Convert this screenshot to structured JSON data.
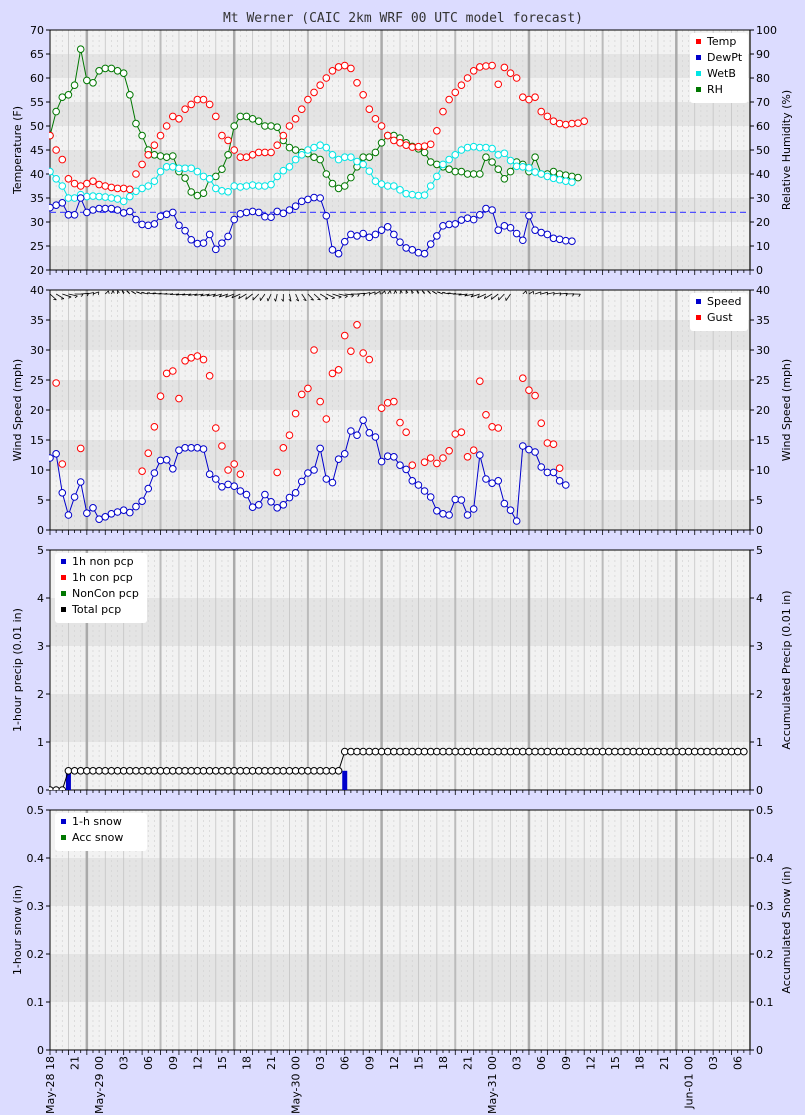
{
  "title": "Mt Werner (CAIC 2km WRF 00 UTC model forecast)",
  "colors": {
    "temp": "#ff0000",
    "dewpt": "#0000cc",
    "wetb": "#00e5e5",
    "rh": "#007700",
    "speed": "#0000cc",
    "gust": "#ff0000",
    "total": "#000000",
    "plot_bg": "#f2f2f2",
    "band": "#e4e4e4",
    "frame_bg": "#dcdcff"
  },
  "x_axis": {
    "hours_total": 114,
    "labels": [
      "May-28 18",
      "21",
      "May-29 00",
      "03",
      "06",
      "09",
      "12",
      "15",
      "18",
      "21",
      "May-30 00",
      "03",
      "06",
      "09",
      "12",
      "15",
      "18",
      "21",
      "May-31 00",
      "03",
      "06",
      "09",
      "12",
      "15",
      "18",
      "21",
      "Jun-01 00",
      "03",
      "06"
    ]
  },
  "chart_data": [
    {
      "type": "line",
      "title": "Mt Werner (CAIC 2km WRF 00 UTC model forecast)",
      "ylabel": "Temperature (F)",
      "y2label": "Relative Humidity (%)",
      "ylim": [
        20,
        70
      ],
      "y2lim": [
        0,
        100
      ],
      "yticks": [
        "20",
        "25",
        "30",
        "35",
        "40",
        "45",
        "50",
        "55",
        "60",
        "65",
        "70"
      ],
      "y2ticks": [
        "0",
        "10",
        "20",
        "30",
        "40",
        "50",
        "60",
        "70",
        "80",
        "90",
        "100"
      ],
      "reference_line": 32,
      "legend": "top-right",
      "series": [
        {
          "name": "Temp",
          "values": [
            48,
            45,
            43,
            39,
            38,
            37.5,
            38,
            38.5,
            37.8,
            37.5,
            37.2,
            37,
            37,
            36.8,
            40,
            42,
            44,
            46,
            48,
            50,
            52,
            51.5,
            53.5,
            54.5,
            55.5,
            55.5,
            54.5,
            52,
            48,
            47,
            45,
            43.5,
            43.5,
            44,
            44.5,
            44.5,
            44.5,
            46,
            48,
            50,
            51.5,
            53.5,
            55.5,
            57,
            58.5,
            60,
            61.5,
            62.3,
            62.6,
            62,
            59,
            56.5,
            53.5,
            51.5,
            50,
            48,
            47,
            46.5,
            46,
            45.6,
            45.7,
            45.8,
            46.2,
            49,
            53,
            55.5,
            57,
            58.5,
            60,
            61.5,
            62.3,
            62.5,
            62.6,
            58.7,
            62.2,
            61,
            60,
            56,
            55.5,
            56,
            53,
            52,
            51,
            50.5,
            50.3,
            50.5,
            50.6,
            51
          ]
        },
        {
          "name": "DewPt",
          "values": [
            33,
            33.5,
            34,
            31.5,
            31.5,
            35,
            32,
            32.5,
            32.8,
            32.8,
            32.8,
            32.5,
            31.9,
            32.2,
            30.5,
            29.5,
            29.3,
            29.6,
            31.2,
            31.6,
            32,
            29.3,
            28.2,
            26.3,
            25.5,
            25.6,
            27.4,
            24.3,
            25.6,
            27,
            30.5,
            31.7,
            32,
            32.2,
            32,
            31.1,
            31,
            32.2,
            31.8,
            32.5,
            33.3,
            34.3,
            34.7,
            35.1,
            35,
            31.3,
            24.2,
            23.4,
            25.9,
            27.4,
            27.1,
            27.6,
            26.8,
            27.4,
            28.3,
            29,
            27.4,
            25.8,
            24.6,
            24.2,
            23.6,
            23.4,
            25.4,
            27.1,
            29.2,
            29.5,
            29.6,
            30.4,
            30.8,
            30.5,
            31.5,
            32.8,
            32.5,
            28.3,
            29.2,
            28.8,
            27.6,
            26.2,
            31.3,
            28.3,
            27.8,
            27.4,
            26.6,
            26.4,
            26.1,
            26
          ]
        },
        {
          "name": "WetB",
          "values": [
            40.5,
            39,
            37.5,
            35,
            35,
            35.7,
            35.3,
            35.4,
            35.3,
            35.2,
            35,
            34.8,
            34.3,
            35.3,
            36.4,
            37,
            37.5,
            38.5,
            40.5,
            41.5,
            41.5,
            41.2,
            41.2,
            41.2,
            40.5,
            39.5,
            39,
            37,
            36.5,
            36.3,
            37.5,
            37.3,
            37.5,
            37.7,
            37.5,
            37.5,
            37.8,
            39.5,
            40.7,
            41.5,
            43,
            44,
            45,
            45.5,
            46,
            45.5,
            44,
            43,
            43.5,
            43.5,
            42.6,
            42,
            40.6,
            38.5,
            37.9,
            37.5,
            37.5,
            36.7,
            35.9,
            35.7,
            35.5,
            35.6,
            37.5,
            39.5,
            42,
            43,
            44,
            45,
            45.5,
            45.7,
            45.5,
            45.5,
            45.3,
            44,
            44.3,
            42.8,
            41.6,
            41.5,
            41.3,
            40.4,
            40,
            39.5,
            39.1,
            38.8,
            38.5,
            38.3
          ]
        },
        {
          "name": "RH",
          "y_axis": "right",
          "values": [
            56,
            66,
            72,
            73,
            77,
            92,
            79,
            78,
            83,
            84,
            84,
            83,
            82,
            73,
            61,
            56,
            50,
            48,
            47.5,
            47,
            47.5,
            41,
            38.3,
            32.5,
            31,
            32,
            38,
            39,
            42,
            48,
            60,
            64,
            64,
            63,
            62,
            60,
            60,
            59.5,
            54,
            51,
            50,
            49,
            48.5,
            47,
            46,
            40,
            36,
            34,
            35,
            38.5,
            43,
            47,
            47,
            49,
            53,
            56,
            56,
            55,
            53,
            51.5,
            50.5,
            49,
            45,
            44,
            43,
            42,
            41,
            41,
            40,
            40,
            40,
            47,
            45,
            42,
            38,
            41,
            45,
            44,
            41,
            47,
            40,
            40,
            41,
            40,
            39.5,
            39,
            38.5
          ]
        }
      ]
    },
    {
      "type": "line",
      "ylabel": "Wind Speed (mph)",
      "y2label": "Wind Speed (mph)",
      "ylim": [
        0,
        40
      ],
      "yticks": [
        "0",
        "5",
        "10",
        "15",
        "20",
        "25",
        "30",
        "35",
        "40"
      ],
      "legend": "top-right",
      "series": [
        {
          "name": "Speed",
          "values": [
            12,
            12.7,
            6.2,
            2.5,
            5.5,
            8,
            2.8,
            3.7,
            1.8,
            2.2,
            2.7,
            3,
            3.3,
            2.9,
            3.9,
            4.8,
            6.9,
            9.5,
            11.6,
            11.7,
            10.2,
            13.3,
            13.7,
            13.7,
            13.7,
            13.5,
            9.3,
            8.5,
            7.2,
            7.6,
            7.3,
            6.5,
            5.9,
            3.8,
            4.2,
            5.9,
            4.7,
            3.7,
            4.2,
            5.4,
            6.2,
            8.1,
            9.5,
            10,
            13.6,
            8.5,
            7.9,
            11.8,
            12.7,
            16.5,
            15.8,
            18.3,
            16.2,
            15.5,
            11.4,
            12.3,
            12.2,
            10.8,
            10.1,
            8.2,
            7.5,
            6.5,
            5.5,
            3.2,
            2.7,
            2.5,
            5.1,
            5,
            2.5,
            3.5,
            12.5,
            8.5,
            7.8,
            8.2,
            4.4,
            3.3,
            1.5,
            14,
            13.4,
            13,
            10.5,
            9.6,
            9.6,
            8.2,
            7.5
          ]
        },
        {
          "name": "Gust",
          "values": [
            null,
            24.5,
            11,
            null,
            null,
            13.6,
            null,
            null,
            null,
            null,
            null,
            null,
            null,
            null,
            null,
            9.8,
            12.8,
            17.2,
            22.3,
            26.1,
            26.5,
            21.9,
            28.2,
            28.7,
            29,
            28.4,
            25.7,
            17,
            14,
            10,
            11,
            9.3,
            null,
            null,
            null,
            null,
            null,
            9.6,
            13.7,
            15.8,
            19.4,
            22.6,
            23.6,
            30,
            21.4,
            18.5,
            26.1,
            26.7,
            32.4,
            29.8,
            34.2,
            29.5,
            28.4,
            null,
            20.3,
            21.2,
            21.4,
            17.9,
            16.3,
            10.8,
            null,
            11.3,
            12,
            11.1,
            12,
            13.2,
            16,
            16.3,
            12.2,
            13.3,
            24.8,
            19.2,
            17.2,
            17,
            null,
            null,
            null,
            25.3,
            23.3,
            22.4,
            17.8,
            14.5,
            14.3,
            10.3
          ]
        }
      ],
      "wind_direction_deg": [
        315,
        300,
        280,
        270,
        250,
        240,
        230,
        220,
        210,
        200,
        190,
        180,
        170,
        160,
        150,
        140,
        130,
        125,
        120,
        115,
        110,
        105,
        100,
        100,
        95,
        95,
        90,
        90,
        85,
        80,
        75,
        70,
        60,
        50,
        40,
        30,
        20,
        10,
        0,
        350,
        340,
        330,
        320,
        315,
        300,
        290,
        280,
        270,
        260,
        250,
        240,
        230,
        220,
        210,
        200,
        195,
        190,
        185,
        180,
        175,
        170,
        165,
        160,
        150,
        140,
        130,
        120,
        110,
        100,
        90,
        80,
        70,
        60,
        50,
        40,
        30,
        20,
        200,
        210,
        220,
        225,
        230,
        235,
        240,
        245,
        250
      ]
    },
    {
      "type": "bar",
      "ylabel": "1-hour precip (0.01 in)",
      "y2label": "Accumulated Precip (0.01 in)",
      "ylim": [
        0,
        5
      ],
      "yticks": [
        "0",
        "1",
        "2",
        "3",
        "4",
        "5"
      ],
      "legend": "top-left",
      "series": [
        {
          "name": "1h non pcp",
          "bars": [
            {
              "hour": 3,
              "value": 0.4
            },
            {
              "hour": 48,
              "value": 0.4
            }
          ]
        },
        {
          "name": "1h con pcp",
          "bars": []
        },
        {
          "name": "NonCon pcp",
          "values": []
        },
        {
          "name": "Total pcp",
          "values": [
            0,
            0,
            0,
            0.4,
            0.4,
            0.4,
            0.4,
            0.4,
            0.4,
            0.4,
            0.4,
            0.4,
            0.4,
            0.4,
            0.4,
            0.4,
            0.4,
            0.4,
            0.4,
            0.4,
            0.4,
            0.4,
            0.4,
            0.4,
            0.4,
            0.4,
            0.4,
            0.4,
            0.4,
            0.4,
            0.4,
            0.4,
            0.4,
            0.4,
            0.4,
            0.4,
            0.4,
            0.4,
            0.4,
            0.4,
            0.4,
            0.4,
            0.4,
            0.4,
            0.4,
            0.4,
            0.4,
            0.4,
            0.8,
            0.8,
            0.8,
            0.8,
            0.8,
            0.8,
            0.8,
            0.8,
            0.8,
            0.8,
            0.8,
            0.8,
            0.8,
            0.8,
            0.8,
            0.8,
            0.8,
            0.8,
            0.8,
            0.8,
            0.8,
            0.8,
            0.8,
            0.8,
            0.8,
            0.8,
            0.8,
            0.8,
            0.8,
            0.8,
            0.8,
            0.8,
            0.8,
            0.8,
            0.8,
            0.8,
            0.8,
            0.8,
            0.8,
            0.8,
            0.8,
            0.8,
            0.8,
            0.8,
            0.8,
            0.8,
            0.8,
            0.8,
            0.8,
            0.8,
            0.8,
            0.8,
            0.8,
            0.8,
            0.8,
            0.8,
            0.8,
            0.8,
            0.8,
            0.8,
            0.8,
            0.8,
            0.8,
            0.8,
            0.8,
            0.8
          ]
        }
      ]
    },
    {
      "type": "bar",
      "ylabel": "1-hour snow (in)",
      "y2label": "Accumulated Snow (in)",
      "ylim": [
        0,
        0.5
      ],
      "yticks": [
        "0",
        "0.1",
        "0.2",
        "0.3",
        "0.4",
        "0.5"
      ],
      "legend": "top-left",
      "series": [
        {
          "name": "1-h snow",
          "values": []
        },
        {
          "name": "Acc snow",
          "values": []
        }
      ]
    }
  ]
}
